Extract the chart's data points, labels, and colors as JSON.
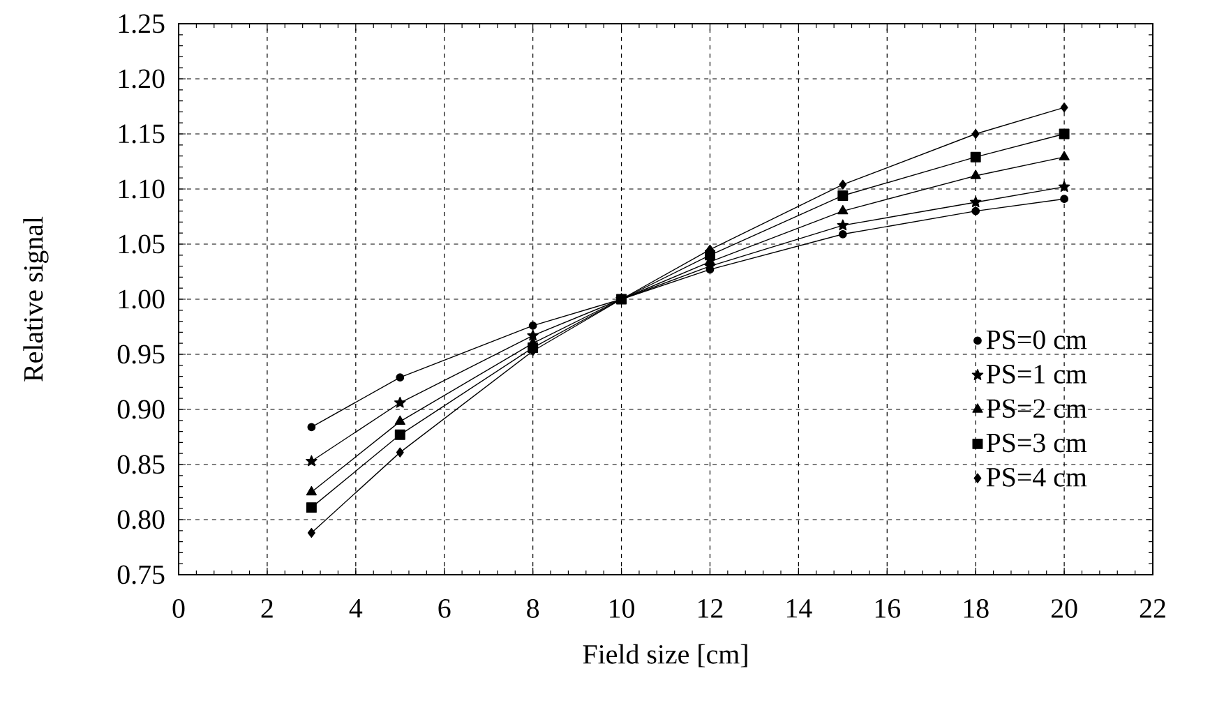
{
  "chart_data": {
    "type": "line",
    "xlabel": "Field size [cm]",
    "ylabel": "Relative signal",
    "xlim": [
      0,
      22
    ],
    "xticks": [
      0,
      2,
      4,
      6,
      8,
      10,
      12,
      14,
      16,
      18,
      20,
      22
    ],
    "ylim": [
      0.75,
      1.25
    ],
    "yticks": [
      {
        "value": 0.75,
        "label": "0.75"
      },
      {
        "value": 0.8,
        "label": "0.80"
      },
      {
        "value": 0.85,
        "label": "0.85"
      },
      {
        "value": 0.9,
        "label": "0.90"
      },
      {
        "value": 0.95,
        "label": "0.95"
      },
      {
        "value": 1.0,
        "label": "1.00"
      },
      {
        "value": 1.05,
        "label": "1.05"
      },
      {
        "value": 1.1,
        "label": "1.10"
      },
      {
        "value": 1.15,
        "label": "1.15"
      },
      {
        "value": 1.2,
        "label": "1.20"
      },
      {
        "value": 1.25,
        "label": "1.25"
      }
    ],
    "grid": true,
    "legend": "right",
    "line_style": "solid",
    "x": [
      3,
      5,
      8,
      10,
      12,
      15,
      18,
      20
    ],
    "series": [
      {
        "name": "PS=0 cm",
        "color": "#000000",
        "marker": "circle",
        "values": [
          0.884,
          0.929,
          0.976,
          1.0,
          1.027,
          1.059,
          1.08,
          1.091
        ]
      },
      {
        "name": "PS=1 cm",
        "color": "#000000",
        "marker": "star",
        "values": [
          0.853,
          0.906,
          0.967,
          1.0,
          1.03,
          1.067,
          1.088,
          1.102
        ]
      },
      {
        "name": "PS=2 cm",
        "color": "#000000",
        "marker": "triangle",
        "values": [
          0.825,
          0.889,
          0.96,
          1.0,
          1.034,
          1.08,
          1.112,
          1.129
        ]
      },
      {
        "name": "PS=3 cm",
        "color": "#000000",
        "marker": "square",
        "values": [
          0.811,
          0.877,
          0.956,
          1.0,
          1.04,
          1.094,
          1.129,
          1.15
        ]
      },
      {
        "name": "PS=4 cm",
        "color": "#000000",
        "marker": "diamond",
        "values": [
          0.788,
          0.861,
          0.953,
          1.0,
          1.045,
          1.104,
          1.15,
          1.174
        ]
      }
    ]
  }
}
